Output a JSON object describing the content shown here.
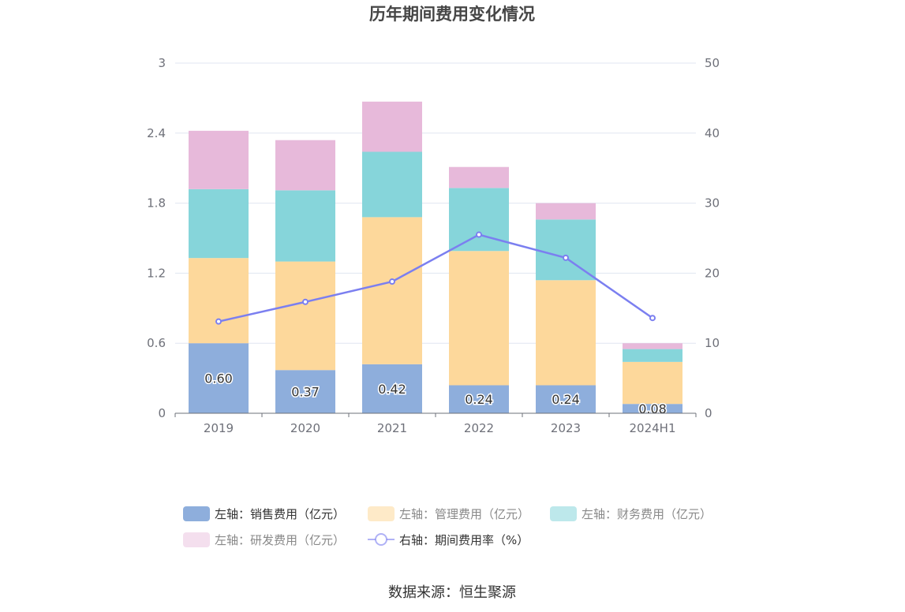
{
  "chart_data": {
    "type": "bar",
    "title": "历年期间费用变化情况",
    "categories": [
      "2019",
      "2020",
      "2021",
      "2022",
      "2023",
      "2024H1"
    ],
    "y_left": {
      "ticks": [
        "0",
        "0.6",
        "1.2",
        "1.8",
        "2.4",
        "3"
      ],
      "lim": [
        0,
        3
      ]
    },
    "y_right": {
      "ticks": [
        "0",
        "10",
        "20",
        "30",
        "40",
        "50"
      ],
      "lim": [
        0,
        50
      ]
    },
    "stacked_series": [
      {
        "name": "左轴：销售费用（亿元）",
        "color": "#8eaedc",
        "values": [
          0.6,
          0.37,
          0.42,
          0.24,
          0.24,
          0.08
        ],
        "labels": [
          "0.60",
          "0.37",
          "0.42",
          "0.24",
          "0.24",
          "0.08"
        ]
      },
      {
        "name": "左轴：管理费用（亿元）",
        "color": "#fdd89b",
        "values": [
          0.73,
          0.93,
          1.26,
          1.15,
          0.9,
          0.36
        ]
      },
      {
        "name": "左轴：财务费用（亿元）",
        "color": "#86d5da",
        "values": [
          0.59,
          0.61,
          0.56,
          0.54,
          0.52,
          0.11
        ]
      },
      {
        "name": "左轴：研发费用（亿元）",
        "color": "#e7b9da",
        "values": [
          0.5,
          0.43,
          0.43,
          0.18,
          0.14,
          0.05
        ]
      }
    ],
    "line_series": {
      "name": "右轴：期间费用率（%）",
      "color": "#7b7ff0",
      "values": [
        13.1,
        15.9,
        18.8,
        25.5,
        22.2,
        13.6
      ]
    },
    "grid": true,
    "legend_position": "bottom"
  },
  "footer": {
    "source": "数据来源：恒生聚源"
  }
}
